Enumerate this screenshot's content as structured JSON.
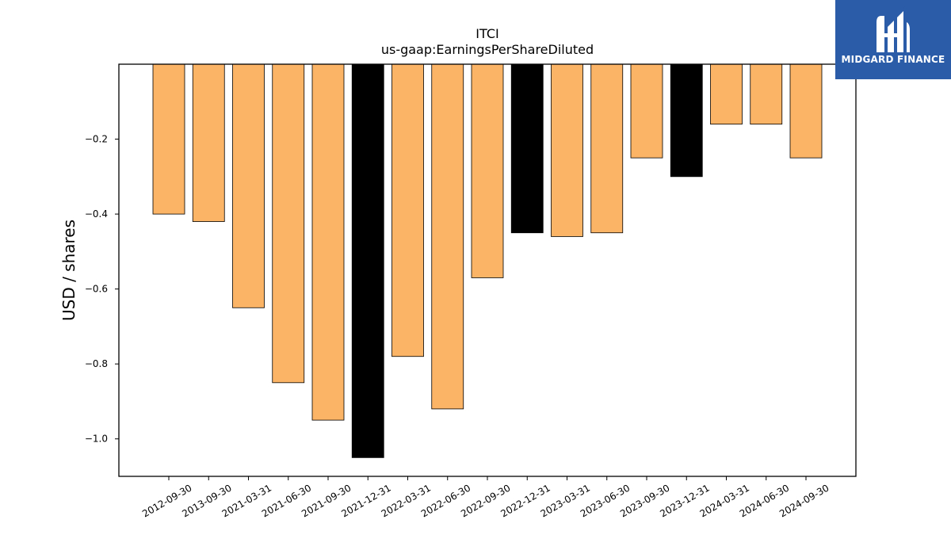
{
  "chart_data": {
    "type": "bar",
    "title": "ITCI",
    "subtitle": "us-gaap:EarningsPerShareDiluted",
    "xlabel": "",
    "ylabel": "USD / shares",
    "categories": [
      "2012-09-30",
      "2013-09-30",
      "2021-03-31",
      "2021-06-30",
      "2021-09-30",
      "2021-12-31",
      "2022-03-31",
      "2022-06-30",
      "2022-09-30",
      "2022-12-31",
      "2023-03-31",
      "2023-06-30",
      "2023-09-30",
      "2023-12-31",
      "2024-03-31",
      "2024-06-30",
      "2024-09-30"
    ],
    "values": [
      -0.4,
      -0.42,
      -0.65,
      -0.85,
      -0.95,
      -1.05,
      -0.78,
      -0.92,
      -0.57,
      -0.45,
      -0.46,
      -0.45,
      -0.25,
      -0.3,
      -0.16,
      -0.16,
      -0.25
    ],
    "highlighted": [
      "2021-12-31",
      "2022-12-31",
      "2023-12-31"
    ],
    "ylim": [
      -1.1,
      0.0
    ],
    "yticks": [
      -1.0,
      -0.8,
      -0.6,
      -0.4,
      -0.2
    ],
    "ytick_labels": [
      "−1.0",
      "−0.8",
      "−0.6",
      "−0.4",
      "−0.2"
    ],
    "grid": false,
    "colors": {
      "default": "#fbb365",
      "highlight": "#000000",
      "edge": "#000000"
    }
  },
  "logo": {
    "text": "MIDGARD FINANCE",
    "background": "#2b5ca8"
  }
}
